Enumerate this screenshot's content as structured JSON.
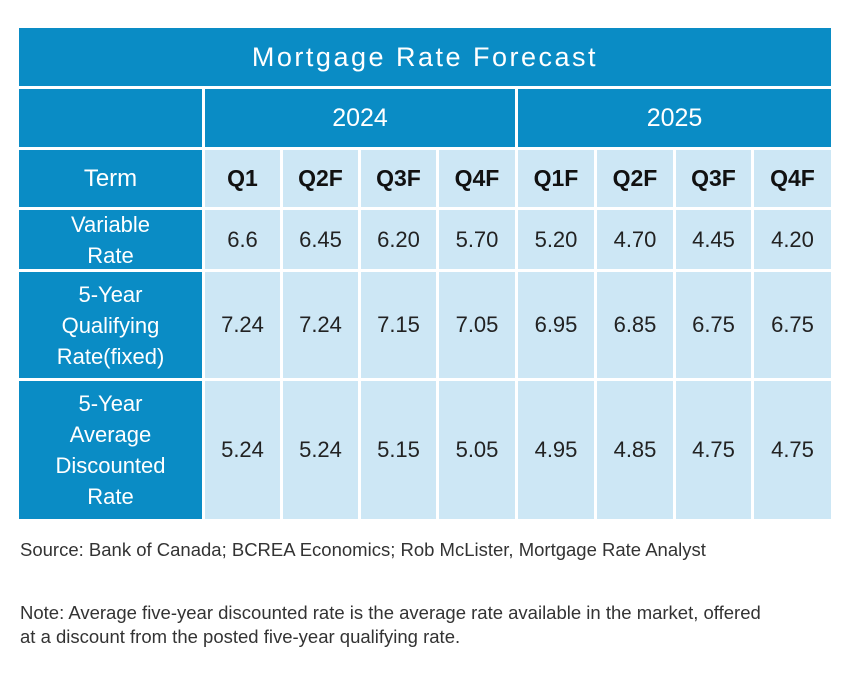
{
  "chart_data": {
    "type": "table",
    "title": "Mortgage Rate Forecast",
    "years": [
      {
        "label": "2024",
        "span": 4
      },
      {
        "label": "2025",
        "span": 4
      }
    ],
    "term_header": "Term",
    "columns": [
      "Q1",
      "Q2F",
      "Q3F",
      "Q4F",
      "Q1F",
      "Q2F",
      "Q3F",
      "Q4F"
    ],
    "rows": [
      {
        "label": "Variable Rate",
        "values": [
          "6.6",
          "6.45",
          "6.20",
          "5.70",
          "5.20",
          "4.70",
          "4.45",
          "4.20"
        ]
      },
      {
        "label": "5-Year Qualifying Rate(fixed)",
        "values": [
          "7.24",
          "7.24",
          "7.15",
          "7.05",
          "6.95",
          "6.85",
          "6.75",
          "6.75"
        ]
      },
      {
        "label": "5-Year Average Discounted Rate",
        "values": [
          "5.24",
          "5.24",
          "5.15",
          "5.05",
          "4.95",
          "4.85",
          "4.75",
          "4.75"
        ]
      }
    ]
  },
  "source": "Source: Bank of Canada; BCREA Economics; Rob McLister, Mortgage Rate Analyst",
  "note": "Note: Average five-year discounted rate is the average rate available in the market, offered at a discount from the posted five-year qualifying rate.",
  "colors": {
    "header": "#0a8cc5",
    "cell": "#cde7f5"
  }
}
